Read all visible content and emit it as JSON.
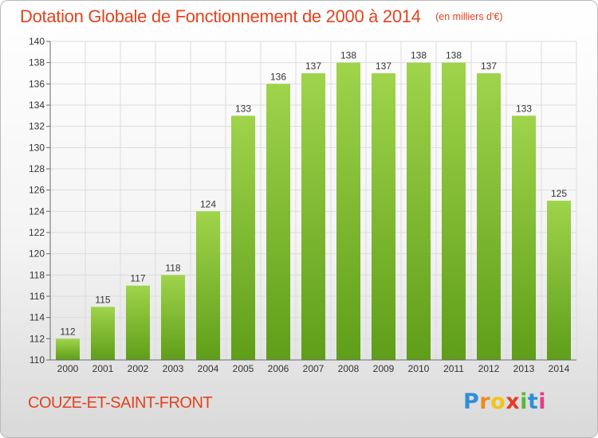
{
  "header": {
    "title": "Dotation Globale de Fonctionnement de 2000 à 2014",
    "subtitle": "(en milliers d'€)"
  },
  "footer": {
    "commune": "COUZE-ET-SAINT-FRONT",
    "logo_text": "Proxiti",
    "logo_icon": "proxiti-logo"
  },
  "chart_data": {
    "type": "bar",
    "title": "Dotation Globale de Fonctionnement de 2000 à 2014",
    "subtitle": "(en milliers d'€)",
    "categories": [
      "2000",
      "2001",
      "2002",
      "2003",
      "2004",
      "2005",
      "2006",
      "2007",
      "2008",
      "2009",
      "2010",
      "2011",
      "2012",
      "2013",
      "2014"
    ],
    "values": [
      112,
      115,
      117,
      118,
      124,
      133,
      136,
      137,
      138,
      137,
      138,
      138,
      137,
      133,
      125
    ],
    "ylim": [
      110,
      140
    ],
    "yticks": [
      110,
      112,
      114,
      116,
      118,
      120,
      122,
      124,
      126,
      128,
      130,
      132,
      134,
      136,
      138,
      140
    ],
    "grid": true,
    "legend": "none",
    "data_labels": true,
    "colors": {
      "bar_light": "#9fd44b",
      "bar_dark": "#5f9e19",
      "grid": "#dcdcdc",
      "axis": "#6a6a6a",
      "text": "#333333"
    }
  }
}
